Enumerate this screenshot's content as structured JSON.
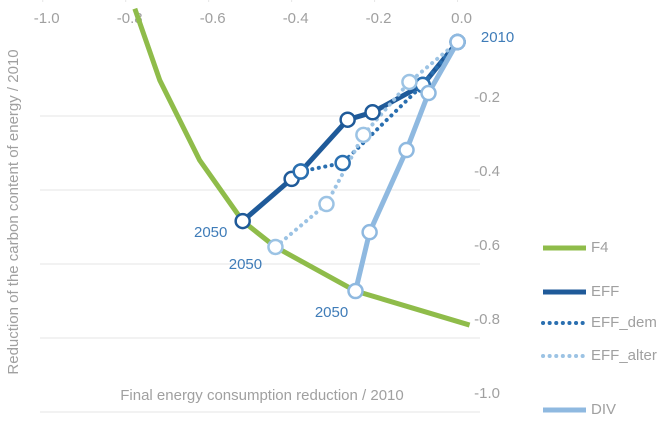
{
  "chart_data": {
    "type": "line",
    "xlabel": "Final energy consumption reduction / 2010",
    "ylabel": "Reduction of the carbon content of energy / 2010",
    "xlim": [
      -1.05,
      0.03
    ],
    "ylim": [
      0.1,
      -1.04
    ],
    "xticks": [
      {
        "value": -1.0,
        "label": "-1.0"
      },
      -0.8,
      -0.6,
      -0.4,
      -0.2,
      {
        "value": 0.0,
        "label": "0.0"
      }
    ],
    "yticks": [
      -0.2,
      -0.4,
      -0.6,
      -0.8,
      {
        "value": -1.0,
        "label": "-1.0"
      }
    ],
    "grid": true,
    "series": [
      {
        "name": "F4",
        "color": "#8fbc4a",
        "style": "solid",
        "marker": false,
        "x": [
          -0.778,
          -0.718,
          -0.622,
          -0.518,
          -0.439,
          -0.246,
          0.029
        ],
        "y": [
          0.09,
          -0.103,
          -0.319,
          -0.484,
          -0.554,
          -0.673,
          -0.765
        ]
      },
      {
        "name": "EFF",
        "color": "#1f5a99",
        "style": "solid",
        "marker": true,
        "x": [
          0,
          -0.084,
          -0.205,
          -0.265,
          -0.378,
          -0.4,
          -0.518
        ],
        "y": [
          0,
          -0.116,
          -0.19,
          -0.21,
          -0.35,
          -0.37,
          -0.484
        ]
      },
      {
        "name": "EFF_dem",
        "color": "#2a6fb0",
        "style": "dotted",
        "marker": true,
        "x": [
          0,
          -0.084,
          -0.277,
          -0.378
        ],
        "y": [
          0,
          -0.116,
          -0.327,
          -0.35
        ]
      },
      {
        "name": "EFF_alter",
        "color": "#9cc3e4",
        "style": "dotted",
        "marker": true,
        "x": [
          0,
          -0.116,
          -0.227,
          -0.316,
          -0.439
        ],
        "y": [
          0,
          -0.108,
          -0.251,
          -0.438,
          -0.554
        ]
      },
      {
        "name": "DIV",
        "color": "#8fb9e0",
        "style": "solid",
        "marker": true,
        "x": [
          0,
          -0.07,
          -0.123,
          -0.212,
          -0.246
        ],
        "y": [
          0,
          -0.138,
          -0.292,
          -0.514,
          -0.673
        ]
      }
    ],
    "annotations": [
      {
        "text": "2010",
        "x": 0,
        "y": 0
      },
      {
        "text": "2050",
        "x": -0.518,
        "y": -0.484
      },
      {
        "text": "2050",
        "x": -0.439,
        "y": -0.554
      },
      {
        "text": "2050",
        "x": -0.246,
        "y": -0.673
      }
    ]
  }
}
